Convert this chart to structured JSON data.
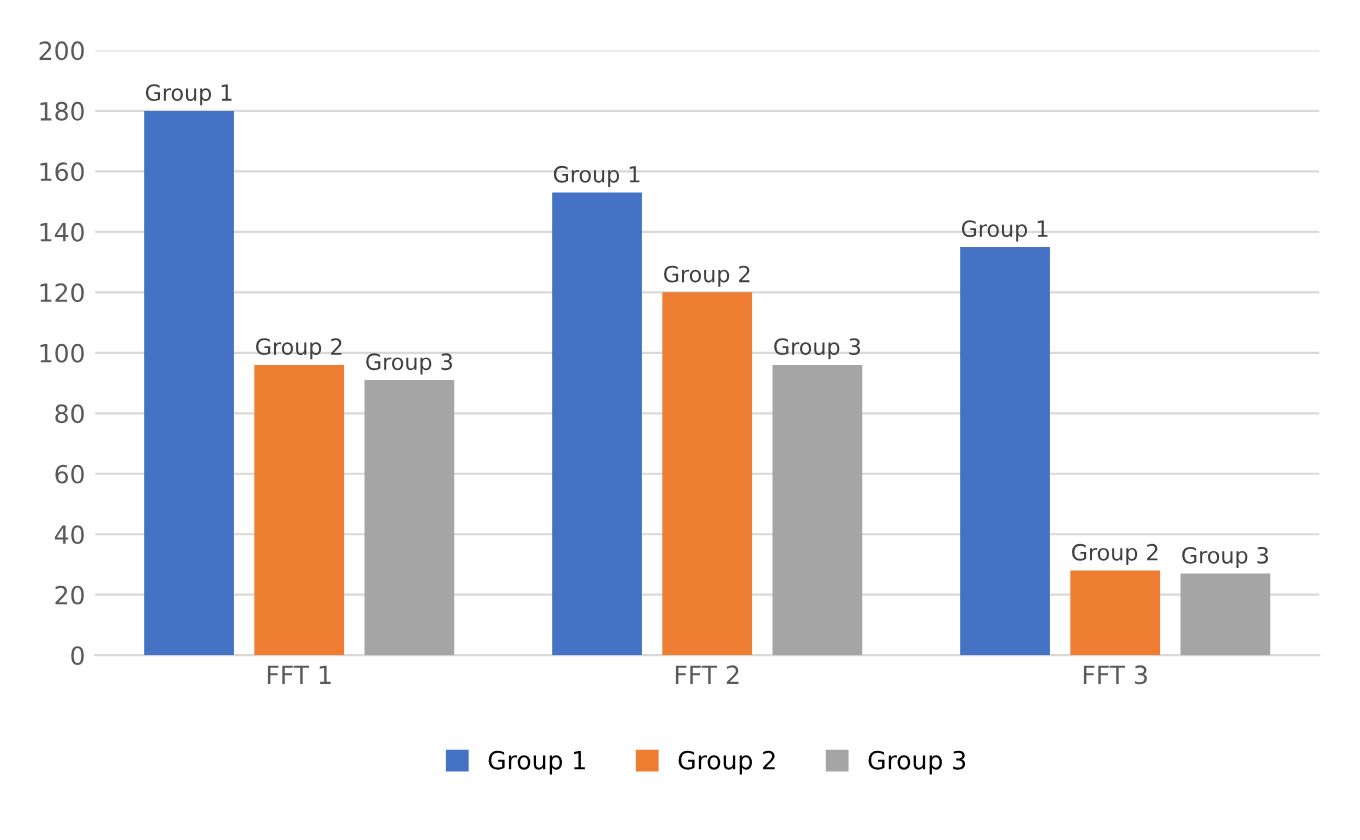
{
  "chart_data": {
    "type": "bar",
    "categories": [
      "FFT 1",
      "FFT 2",
      "FFT 3"
    ],
    "series": [
      {
        "name": "Group 1",
        "color": "#4472c4",
        "values": [
          180,
          153,
          135
        ],
        "value_labels": [
          "Group 1",
          "Group 1",
          "Group 1"
        ]
      },
      {
        "name": "Group 2",
        "color": "#ed7d31",
        "values": [
          96,
          120,
          28
        ],
        "value_labels": [
          "Group 2",
          "Group 2",
          "Group 2"
        ]
      },
      {
        "name": "Group 3",
        "color": "#a5a5a5",
        "values": [
          91,
          96,
          27
        ],
        "value_labels": [
          "Group 3",
          "Group 3",
          "Group 3"
        ]
      }
    ],
    "ylim": [
      0,
      200
    ],
    "yticks": [
      0,
      20,
      40,
      60,
      80,
      100,
      120,
      140,
      160,
      180,
      200
    ],
    "grid": "y",
    "legend": "bottom"
  }
}
